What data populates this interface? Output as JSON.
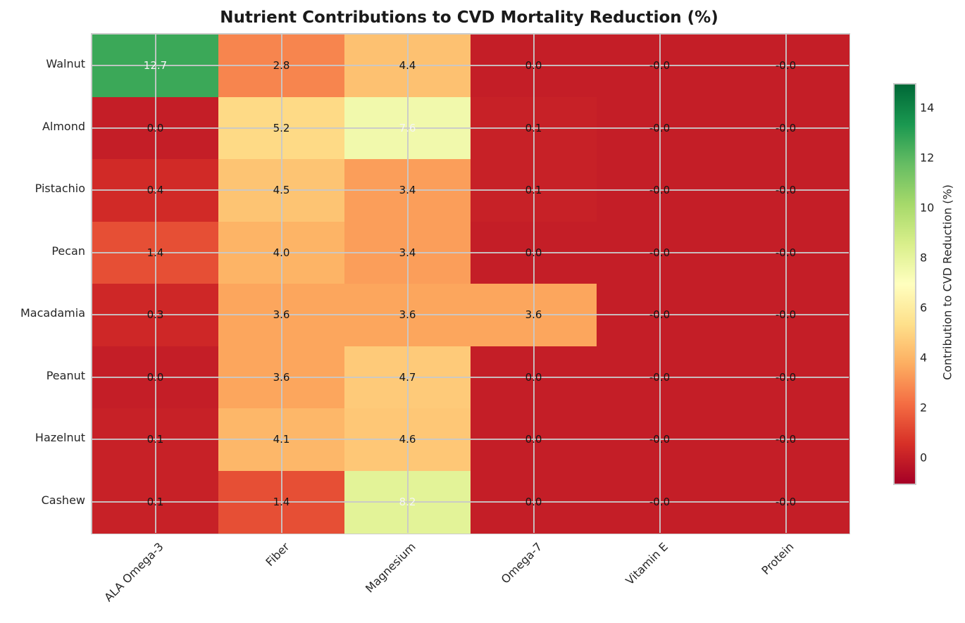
{
  "title": "Nutrient Contributions to CVD Mortality Reduction (%)",
  "chart_data": {
    "type": "heatmap",
    "title": "Nutrient Contributions to CVD Mortality Reduction (%)",
    "rows": [
      "Walnut",
      "Almond",
      "Pistachio",
      "Pecan",
      "Macadamia",
      "Peanut",
      "Hazelnut",
      "Cashew"
    ],
    "columns": [
      "ALA Omega-3",
      "Fiber",
      "Magnesium",
      "Omega-7",
      "Vitamin E",
      "Protein"
    ],
    "values": [
      [
        12.7,
        2.8,
        4.4,
        0.0,
        -0.0,
        -0.0
      ],
      [
        0.0,
        5.2,
        7.6,
        0.1,
        -0.0,
        -0.0
      ],
      [
        0.4,
        4.5,
        3.4,
        0.1,
        -0.0,
        -0.0
      ],
      [
        1.4,
        4.0,
        3.4,
        0.0,
        -0.0,
        -0.0
      ],
      [
        0.3,
        3.6,
        3.6,
        3.6,
        -0.0,
        -0.0
      ],
      [
        0.0,
        3.6,
        4.7,
        0.0,
        -0.0,
        -0.0
      ],
      [
        0.1,
        4.1,
        4.6,
        0.0,
        -0.0,
        -0.0
      ],
      [
        0.1,
        1.4,
        8.2,
        0.0,
        -0.0,
        -0.0
      ]
    ],
    "cell_labels": [
      [
        "12.7",
        "2.8",
        "4.4",
        "0.0",
        "-0.0",
        "-0.0"
      ],
      [
        "0.0",
        "5.2",
        "7.6",
        "0.1",
        "-0.0",
        "-0.0"
      ],
      [
        "0.4",
        "4.5",
        "3.4",
        "0.1",
        "-0.0",
        "-0.0"
      ],
      [
        "1.4",
        "4.0",
        "3.4",
        "0.0",
        "-0.0",
        "-0.0"
      ],
      [
        "0.3",
        "3.6",
        "3.6",
        "3.6",
        "-0.0",
        "-0.0"
      ],
      [
        "0.0",
        "3.6",
        "4.7",
        "0.0",
        "-0.0",
        "-0.0"
      ],
      [
        "0.1",
        "4.1",
        "4.6",
        "0.0",
        "-0.0",
        "-0.0"
      ],
      [
        "0.1",
        "1.4",
        "8.2",
        "0.0",
        "-0.0",
        "-0.0"
      ]
    ],
    "colormap": {
      "name": "RdYlGn",
      "vmin": -1,
      "vmax": 15,
      "anchors": [
        "#a50026",
        "#d73027",
        "#f46d43",
        "#fdae61",
        "#fee08b",
        "#ffffbf",
        "#d9ef8b",
        "#a6d96a",
        "#66bd63",
        "#1a9850",
        "#006837"
      ]
    },
    "annotation_colors": {
      "light": "#f5f5f5",
      "dark": "#151515",
      "light_threshold": 7
    },
    "grid": true,
    "grid_color": "#c9c9c9",
    "colorbar": {
      "label": "Contribution to CVD Reduction (%)",
      "ticks": [
        0,
        2,
        4,
        6,
        8,
        10,
        12,
        14
      ]
    }
  }
}
